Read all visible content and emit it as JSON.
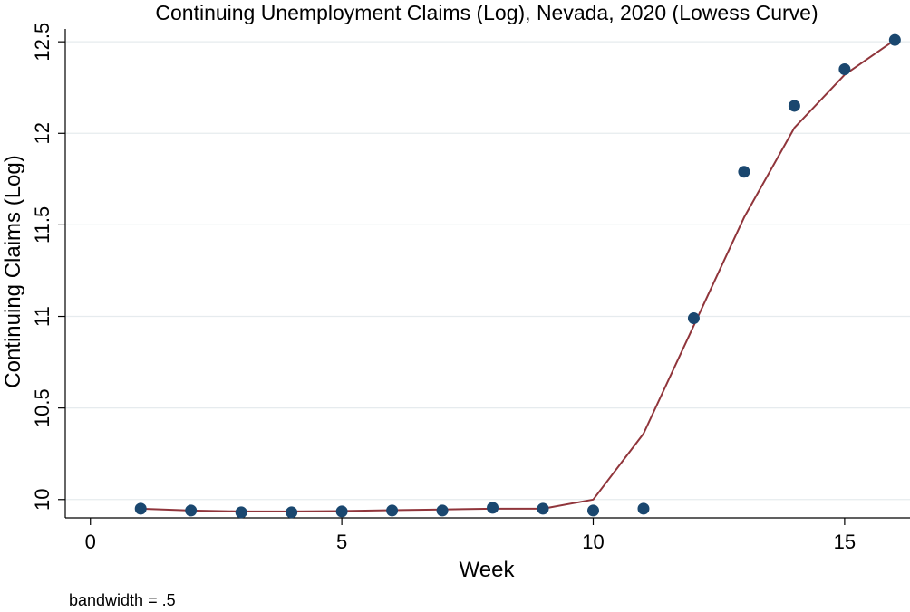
{
  "chart_data": {
    "type": "scatter",
    "title": "Continuing Unemployment Claims (Log), Nevada, 2020 (Lowess Curve)",
    "xlabel": "Week",
    "ylabel": "Continuing Claims (Log)",
    "note": "bandwidth = .5",
    "xlim": [
      -0.5,
      16.3
    ],
    "ylim": [
      9.9,
      12.57
    ],
    "xticks": [
      0,
      5,
      10,
      15
    ],
    "xtick_labels": [
      "0",
      "5",
      "10",
      "15"
    ],
    "yticks": [
      10,
      10.5,
      11,
      11.5,
      12,
      12.5
    ],
    "ytick_labels": [
      "10",
      "10.5",
      "11",
      "11.5",
      "12",
      "12.5"
    ],
    "grid": "horizontal",
    "series": [
      {
        "kind": "scatter",
        "color": "#1a476f",
        "x": [
          1,
          2,
          3,
          4,
          5,
          6,
          7,
          8,
          9,
          10,
          11,
          12,
          13,
          14,
          15,
          16
        ],
        "y": [
          9.95,
          9.94,
          9.93,
          9.93,
          9.935,
          9.94,
          9.94,
          9.955,
          9.95,
          9.94,
          9.95,
          10.99,
          11.79,
          12.15,
          12.35,
          12.51
        ]
      },
      {
        "kind": "line",
        "color": "#90353b",
        "x": [
          1,
          2,
          3,
          4,
          5,
          6,
          7,
          8,
          9,
          10,
          11,
          12,
          13,
          14,
          15,
          16
        ],
        "y": [
          9.95,
          9.94,
          9.935,
          9.935,
          9.937,
          9.942,
          9.946,
          9.95,
          9.95,
          10.0,
          10.36,
          10.95,
          11.54,
          12.03,
          12.32,
          12.51
        ]
      }
    ]
  }
}
